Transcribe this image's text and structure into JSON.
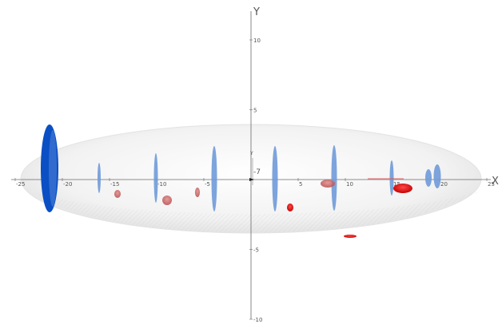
{
  "axes": {
    "x_label": "X",
    "y_label": "Y",
    "x_ticks": [
      "-25",
      "-20",
      "-15",
      "-10",
      "-5",
      "5",
      "10",
      "15",
      "20",
      "25"
    ],
    "y_ticks": [
      "10",
      "5",
      "-5",
      "-10"
    ],
    "mini_axis": {
      "y_label": "Y",
      "value": "-7"
    }
  },
  "colors": {
    "envelope": "#e8e8e8",
    "blue_disc": "#6f9ad8",
    "large_disc": "#0a4fc4",
    "red_ellipse": "#e02020",
    "faded_red": "#c85a5a"
  }
}
